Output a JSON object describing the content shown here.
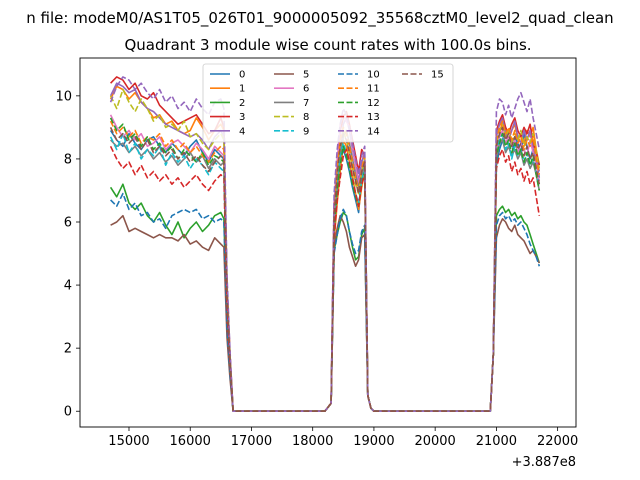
{
  "figure": {
    "suptitle": "n file: modeM0/AS1T05_026T01_9000005092_35568cztM0_level2_quad_clean",
    "title": "Quadrant 3 module wise count rates with 100.0s bins.",
    "x_offset_label": "+3.887e8"
  },
  "chart_data": {
    "type": "line",
    "title": "Quadrant 3 module wise count rates with 100.0s bins.",
    "xlabel": "",
    "ylabel": "",
    "x_offset": 388700000,
    "xlim": [
      14200,
      22300
    ],
    "ylim": [
      -0.5,
      11.2
    ],
    "xticks": [
      15000,
      16000,
      17000,
      18000,
      19000,
      20000,
      21000,
      22000
    ],
    "yticks": [
      0,
      2,
      4,
      6,
      8,
      10
    ],
    "grid": false,
    "legend_position": "top-center",
    "legend_columns": 4,
    "segments": {
      "a": [
        14700,
        14800,
        14900,
        15000,
        15100,
        15200,
        15300,
        15400,
        15500,
        15600,
        15700,
        15800,
        15900,
        16000,
        16100,
        16200,
        16300,
        16400,
        16500,
        16550
      ],
      "b": [
        18350,
        18400,
        18450,
        18500,
        18550,
        18600,
        18650,
        18700,
        18750,
        18800,
        18850
      ],
      "c": [
        21000,
        21050,
        21100,
        21150,
        21200,
        21250,
        21300,
        21350,
        21400,
        21450,
        21500,
        21550,
        21600,
        21650,
        21700
      ]
    },
    "gaps": [
      {
        "x": [
          16550,
          16600,
          16650,
          16700,
          16750,
          18200,
          18300,
          18350
        ],
        "y": "drop_rise"
      },
      {
        "x": [
          18850,
          18900,
          18950,
          19000,
          20800,
          20900,
          20950,
          21000
        ],
        "y": "drop_rise"
      }
    ],
    "series": [
      {
        "name": "0",
        "color": "#1f77b4",
        "dash": false,
        "a": [
          8.9,
          8.6,
          8.4,
          8.8,
          8.5,
          8.3,
          8.6,
          8.7,
          8.4,
          8.2,
          8.5,
          8.3,
          8.1,
          8.4,
          8.6,
          8.2,
          7.9,
          8.3,
          8.1,
          8.0
        ],
        "b": [
          6.2,
          7.2,
          7.9,
          8.3,
          8.0,
          7.6,
          7.1,
          6.7,
          6.3,
          7.4,
          7.9
        ],
        "c": [
          7.8,
          8.3,
          8.6,
          8.9,
          8.4,
          8.1,
          8.7,
          8.5,
          8.2,
          8.8,
          8.4,
          8.0,
          8.3,
          7.9,
          7.4
        ]
      },
      {
        "name": "1",
        "color": "#ff7f0e",
        "dash": false,
        "a": [
          9.9,
          10.3,
          10.2,
          9.9,
          10.1,
          9.8,
          9.6,
          9.3,
          9.4,
          9.1,
          9.2,
          8.9,
          8.8,
          8.9,
          9.3,
          9.0,
          8.6,
          8.9,
          9.1,
          8.9
        ],
        "b": [
          5.4,
          6.6,
          7.6,
          8.6,
          8.4,
          7.9,
          7.4,
          6.9,
          6.4,
          7.1,
          7.6
        ],
        "c": [
          8.3,
          8.8,
          9.2,
          9.0,
          8.6,
          8.9,
          9.1,
          8.6,
          8.8,
          8.5,
          8.9,
          8.7,
          9.0,
          8.3,
          7.8
        ]
      },
      {
        "name": "2",
        "color": "#2ca02c",
        "dash": false,
        "a": [
          7.1,
          6.8,
          7.2,
          6.6,
          6.4,
          6.6,
          6.2,
          6.0,
          6.3,
          5.9,
          5.6,
          6.0,
          5.5,
          5.8,
          6.0,
          5.7,
          5.9,
          6.2,
          6.3,
          6.1
        ],
        "b": [
          5.1,
          5.6,
          6.0,
          6.3,
          6.2,
          5.7,
          5.2,
          4.8,
          4.9,
          5.6,
          5.8
        ],
        "c": [
          6.2,
          6.4,
          6.5,
          6.3,
          6.4,
          6.2,
          6.3,
          6.1,
          6.2,
          6.0,
          5.9,
          5.6,
          5.3,
          5.0,
          4.7
        ]
      },
      {
        "name": "3",
        "color": "#d62728",
        "dash": false,
        "a": [
          10.4,
          10.6,
          10.5,
          10.2,
          10.4,
          10.0,
          9.9,
          10.1,
          9.7,
          9.5,
          9.3,
          9.1,
          9.2,
          9.3,
          9.4,
          9.1,
          8.8,
          8.9,
          9.3,
          9.0
        ],
        "b": [
          6.6,
          7.9,
          8.9,
          9.3,
          9.5,
          9.1,
          8.6,
          8.1,
          7.6,
          8.3,
          8.1
        ],
        "c": [
          8.9,
          9.2,
          9.4,
          9.0,
          8.8,
          9.1,
          9.3,
          8.9,
          8.7,
          9.0,
          8.8,
          9.1,
          8.5,
          8.2,
          7.8
        ]
      },
      {
        "name": "4",
        "color": "#9467bd",
        "dash": false,
        "a": [
          10.0,
          10.4,
          10.3,
          10.1,
          10.2,
          9.8,
          9.6,
          9.5,
          9.3,
          9.1,
          9.0,
          8.9,
          8.8,
          8.7,
          8.8,
          8.6,
          8.3,
          8.7,
          8.9,
          8.7
        ],
        "b": [
          5.8,
          7.0,
          8.2,
          9.1,
          9.3,
          8.9,
          8.3,
          7.8,
          7.3,
          7.9,
          8.2
        ],
        "c": [
          8.7,
          9.1,
          9.3,
          8.8,
          8.6,
          8.9,
          9.2,
          8.7,
          8.5,
          8.9,
          8.6,
          8.9,
          8.3,
          8.0,
          7.6
        ]
      },
      {
        "name": "5",
        "color": "#8c564b",
        "dash": false,
        "a": [
          5.9,
          6.0,
          6.2,
          5.7,
          5.8,
          5.7,
          5.6,
          5.5,
          5.6,
          5.5,
          5.5,
          5.4,
          5.6,
          5.3,
          5.4,
          5.2,
          5.1,
          5.5,
          5.3,
          5.2
        ],
        "b": [
          5.2,
          5.8,
          6.2,
          6.0,
          5.7,
          5.2,
          4.9,
          4.6,
          4.8,
          5.5,
          5.6
        ],
        "c": [
          5.5,
          5.9,
          6.1,
          6.0,
          5.8,
          5.7,
          5.9,
          5.6,
          5.5,
          5.4,
          5.2,
          5.0,
          5.1,
          4.9,
          4.7
        ]
      },
      {
        "name": "6",
        "color": "#e377c2",
        "dash": false,
        "a": [
          9.4,
          9.0,
          8.7,
          8.9,
          8.6,
          8.8,
          8.4,
          8.5,
          8.7,
          8.3,
          8.5,
          8.6,
          8.4,
          8.2,
          8.5,
          8.3,
          8.0,
          8.4,
          8.2,
          8.1
        ],
        "b": [
          6.6,
          7.9,
          9.1,
          9.4,
          9.2,
          9.0,
          8.4,
          7.8,
          7.2,
          7.6,
          8.0
        ],
        "c": [
          8.3,
          8.7,
          8.9,
          8.5,
          8.7,
          8.4,
          8.6,
          8.2,
          8.5,
          8.3,
          8.1,
          8.6,
          8.2,
          7.8,
          7.3
        ]
      },
      {
        "name": "7",
        "color": "#7f7f7f",
        "dash": false,
        "a": [
          8.6,
          8.4,
          8.5,
          8.2,
          8.4,
          8.1,
          8.3,
          8.0,
          8.2,
          7.9,
          8.1,
          7.8,
          8.0,
          8.2,
          7.9,
          8.1,
          7.7,
          8.0,
          7.8,
          7.9
        ],
        "b": [
          6.0,
          7.1,
          8.0,
          8.7,
          8.9,
          8.5,
          8.0,
          7.5,
          7.1,
          7.5,
          7.8
        ],
        "c": [
          8.0,
          8.5,
          8.6,
          8.2,
          8.4,
          8.1,
          8.3,
          8.0,
          8.2,
          7.8,
          8.0,
          7.7,
          7.9,
          7.5,
          7.0
        ]
      },
      {
        "name": "8",
        "color": "#bcbd22",
        "dash": true,
        "a": [
          10.0,
          9.6,
          10.2,
          9.8,
          9.5,
          9.9,
          9.6,
          9.2,
          9.4,
          9.0,
          9.1,
          8.9,
          9.2,
          8.7,
          8.8,
          8.5,
          8.3,
          8.6,
          8.8,
          8.6
        ],
        "b": [
          5.9,
          7.3,
          8.3,
          8.9,
          8.6,
          8.2,
          7.7,
          7.2,
          6.9,
          7.6,
          8.0
        ],
        "c": [
          8.5,
          8.9,
          9.1,
          8.7,
          8.9,
          8.5,
          8.8,
          8.6,
          8.9,
          8.4,
          8.7,
          8.5,
          8.8,
          8.2,
          7.7
        ]
      },
      {
        "name": "9",
        "color": "#17becf",
        "dash": true,
        "a": [
          8.7,
          8.3,
          8.8,
          8.2,
          8.5,
          8.0,
          8.3,
          8.1,
          8.4,
          7.8,
          8.2,
          7.9,
          8.1,
          7.7,
          8.0,
          7.8,
          7.5,
          7.9,
          7.7,
          7.6
        ],
        "b": [
          6.1,
          7.4,
          8.1,
          8.5,
          8.2,
          7.8,
          7.3,
          6.9,
          6.6,
          7.3,
          7.7
        ],
        "c": [
          8.2,
          8.6,
          8.8,
          8.3,
          8.5,
          8.0,
          8.4,
          8.1,
          8.3,
          7.9,
          8.2,
          7.8,
          8.0,
          7.6,
          7.1
        ]
      },
      {
        "name": "10",
        "color": "#1f77b4",
        "dash": true,
        "a": [
          6.7,
          6.5,
          6.9,
          6.4,
          6.6,
          6.2,
          6.3,
          6.0,
          6.1,
          5.8,
          6.2,
          6.3,
          6.4,
          6.3,
          6.4,
          6.1,
          6.2,
          6.0,
          6.1,
          6.0
        ],
        "b": [
          5.0,
          5.6,
          6.1,
          6.4,
          6.2,
          5.7,
          5.3,
          5.0,
          5.1,
          5.7,
          5.9
        ],
        "c": [
          5.9,
          6.2,
          6.3,
          6.1,
          6.2,
          6.0,
          6.1,
          5.9,
          6.0,
          5.8,
          5.6,
          5.3,
          5.1,
          4.9,
          4.6
        ]
      },
      {
        "name": "11",
        "color": "#ff7f0e",
        "dash": true,
        "a": [
          9.2,
          8.8,
          9.0,
          8.7,
          8.9,
          8.5,
          8.7,
          8.6,
          8.8,
          8.4,
          8.6,
          8.3,
          8.5,
          8.2,
          8.4,
          8.1,
          7.9,
          8.2,
          8.4,
          8.3
        ],
        "b": [
          6.4,
          7.7,
          8.6,
          9.0,
          8.8,
          8.4,
          7.9,
          7.4,
          7.0,
          7.7,
          8.1
        ],
        "c": [
          8.6,
          9.0,
          9.2,
          8.8,
          9.0,
          8.6,
          8.9,
          8.5,
          8.7,
          8.3,
          8.6,
          8.4,
          8.7,
          8.0,
          7.5
        ]
      },
      {
        "name": "12",
        "color": "#2ca02c",
        "dash": true,
        "a": [
          9.3,
          8.9,
          9.1,
          8.6,
          8.8,
          8.4,
          8.7,
          8.3,
          8.5,
          8.2,
          8.4,
          8.0,
          8.3,
          8.1,
          7.9,
          8.2,
          7.8,
          8.1,
          8.0,
          7.9
        ],
        "b": [
          5.7,
          7.0,
          7.8,
          8.4,
          8.1,
          7.7,
          7.2,
          6.8,
          6.5,
          7.2,
          7.6
        ],
        "c": [
          8.1,
          8.5,
          8.8,
          8.4,
          8.6,
          8.2,
          8.5,
          8.1,
          8.3,
          7.9,
          8.2,
          7.8,
          8.1,
          7.5,
          7.0
        ]
      },
      {
        "name": "13",
        "color": "#d62728",
        "dash": true,
        "a": [
          8.4,
          8.0,
          7.7,
          7.9,
          7.5,
          7.8,
          7.4,
          7.6,
          7.3,
          7.5,
          7.2,
          7.4,
          7.1,
          7.3,
          7.5,
          7.2,
          7.0,
          7.3,
          7.5,
          7.4
        ],
        "b": [
          5.5,
          6.7,
          7.4,
          8.1,
          8.3,
          7.9,
          7.4,
          6.9,
          6.5,
          7.2,
          7.5
        ],
        "c": [
          7.7,
          8.1,
          8.3,
          7.9,
          8.1,
          7.6,
          7.9,
          7.5,
          7.7,
          7.3,
          7.6,
          7.2,
          7.4,
          6.8,
          6.2
        ]
      },
      {
        "name": "14",
        "color": "#9467bd",
        "dash": true,
        "a": [
          9.8,
          10.3,
          10.6,
          10.5,
          10.2,
          10.4,
          10.1,
          9.9,
          10.2,
          9.8,
          10.0,
          9.6,
          9.8,
          9.5,
          9.9,
          9.6,
          9.4,
          9.8,
          9.9,
          9.6
        ],
        "b": [
          6.9,
          8.3,
          9.1,
          9.6,
          9.4,
          9.0,
          8.5,
          8.0,
          7.5,
          8.1,
          8.4
        ],
        "c": [
          9.5,
          9.9,
          9.8,
          9.4,
          9.7,
          9.3,
          9.6,
          9.9,
          10.1,
          9.8,
          9.5,
          9.9,
          9.3,
          8.8,
          8.3
        ]
      },
      {
        "name": "15",
        "color": "#8c564b",
        "dash": true,
        "a": [
          9.0,
          8.6,
          8.8,
          8.5,
          8.7,
          8.3,
          8.6,
          8.2,
          8.4,
          8.1,
          8.3,
          8.0,
          8.2,
          7.9,
          8.1,
          7.8,
          7.6,
          7.9,
          8.1,
          8.0
        ],
        "b": [
          6.2,
          7.5,
          8.4,
          8.8,
          8.6,
          8.2,
          7.7,
          7.3,
          6.9,
          7.6,
          7.9
        ],
        "c": [
          8.4,
          8.8,
          9.0,
          8.6,
          8.8,
          8.4,
          8.7,
          8.3,
          8.5,
          8.1,
          8.4,
          8.0,
          8.2,
          7.7,
          7.2
        ]
      }
    ]
  }
}
